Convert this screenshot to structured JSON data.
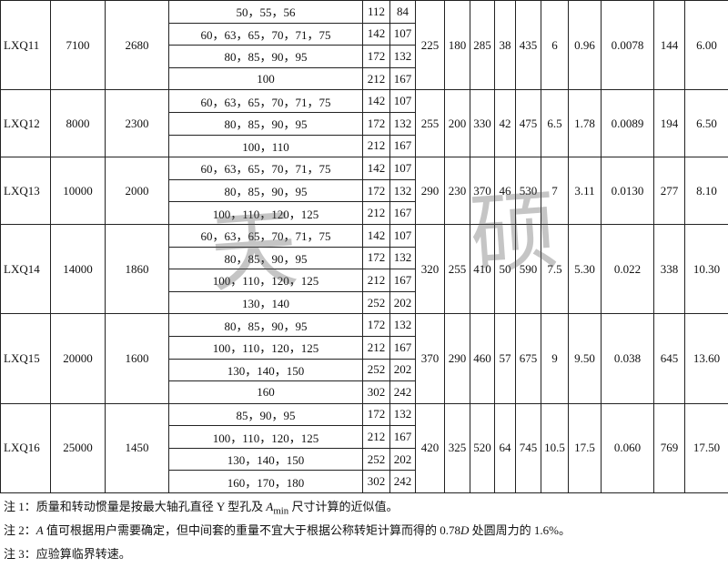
{
  "table": {
    "groups": [
      {
        "model": "LXQ11",
        "torque": "7100",
        "speed": "2680",
        "bores": [
          {
            "d": "50，55，56",
            "l1": "112",
            "l2": "84"
          },
          {
            "d": "60，63，65，70，71，75",
            "l1": "142",
            "l2": "107"
          },
          {
            "d": "80，85，90，95",
            "l1": "172",
            "l2": "132"
          },
          {
            "d": "100",
            "l1": "212",
            "l2": "167"
          }
        ],
        "values": [
          "225",
          "180",
          "285",
          "38",
          "435",
          "6",
          "0.96",
          "0.0078",
          "144",
          "6.00"
        ]
      },
      {
        "model": "LXQ12",
        "torque": "8000",
        "speed": "2300",
        "bores": [
          {
            "d": "60，63，65，70，71，75",
            "l1": "142",
            "l2": "107"
          },
          {
            "d": "80，85，90，95",
            "l1": "172",
            "l2": "132"
          },
          {
            "d": "100，110",
            "l1": "212",
            "l2": "167"
          }
        ],
        "values": [
          "255",
          "200",
          "330",
          "42",
          "475",
          "6.5",
          "1.78",
          "0.0089",
          "194",
          "6.50"
        ]
      },
      {
        "model": "LXQ13",
        "torque": "10000",
        "speed": "2000",
        "bores": [
          {
            "d": "60，63，65，70，71，75",
            "l1": "142",
            "l2": "107"
          },
          {
            "d": "80，85，90，95",
            "l1": "172",
            "l2": "132"
          },
          {
            "d": "100，110，120，125",
            "l1": "212",
            "l2": "167"
          }
        ],
        "values": [
          "290",
          "230",
          "370",
          "46",
          "530",
          "7",
          "3.11",
          "0.0130",
          "277",
          "8.10"
        ]
      },
      {
        "model": "LXQ14",
        "torque": "14000",
        "speed": "1860",
        "bores": [
          {
            "d": "60，63，65，70，71，75",
            "l1": "142",
            "l2": "107"
          },
          {
            "d": "80，85，90，95",
            "l1": "172",
            "l2": "132"
          },
          {
            "d": "100，110，120，125",
            "l1": "212",
            "l2": "167"
          },
          {
            "d": "130，140",
            "l1": "252",
            "l2": "202"
          }
        ],
        "values": [
          "320",
          "255",
          "410",
          "50",
          "590",
          "7.5",
          "5.30",
          "0.022",
          "338",
          "10.30"
        ]
      },
      {
        "model": "LXQ15",
        "torque": "20000",
        "speed": "1600",
        "bores": [
          {
            "d": "80，85，90，95",
            "l1": "172",
            "l2": "132"
          },
          {
            "d": "100，110，120，125",
            "l1": "212",
            "l2": "167"
          },
          {
            "d": "130，140，150",
            "l1": "252",
            "l2": "202"
          },
          {
            "d": "160",
            "l1": "302",
            "l2": "242"
          }
        ],
        "values": [
          "370",
          "290",
          "460",
          "57",
          "675",
          "9",
          "9.50",
          "0.038",
          "645",
          "13.60"
        ]
      },
      {
        "model": "LXQ16",
        "torque": "25000",
        "speed": "1450",
        "bores": [
          {
            "d": "85，90，95",
            "l1": "172",
            "l2": "132"
          },
          {
            "d": "100，110，120，125",
            "l1": "212",
            "l2": "167"
          },
          {
            "d": "130，140，150",
            "l1": "252",
            "l2": "202"
          },
          {
            "d": "160，170，180",
            "l1": "302",
            "l2": "242"
          }
        ],
        "values": [
          "420",
          "325",
          "520",
          "64",
          "745",
          "10.5",
          "17.5",
          "0.060",
          "769",
          "17.50"
        ]
      }
    ]
  },
  "notes": [
    [
      "注 1：质量和转动惯量是按最大轴孔直径 Y 型孔及 ",
      "A",
      "min",
      " 尺寸计算的近似值。"
    ],
    [
      "注 2：",
      "A",
      " 值可根据用户需要确定，但中间套的重量不宜大于根据公称转矩计算而得的 0.78",
      "D",
      " 处圆周力的 1.6%。"
    ],
    [
      "注 3：应验算临界转速。"
    ]
  ],
  "watermark": "天 硕"
}
